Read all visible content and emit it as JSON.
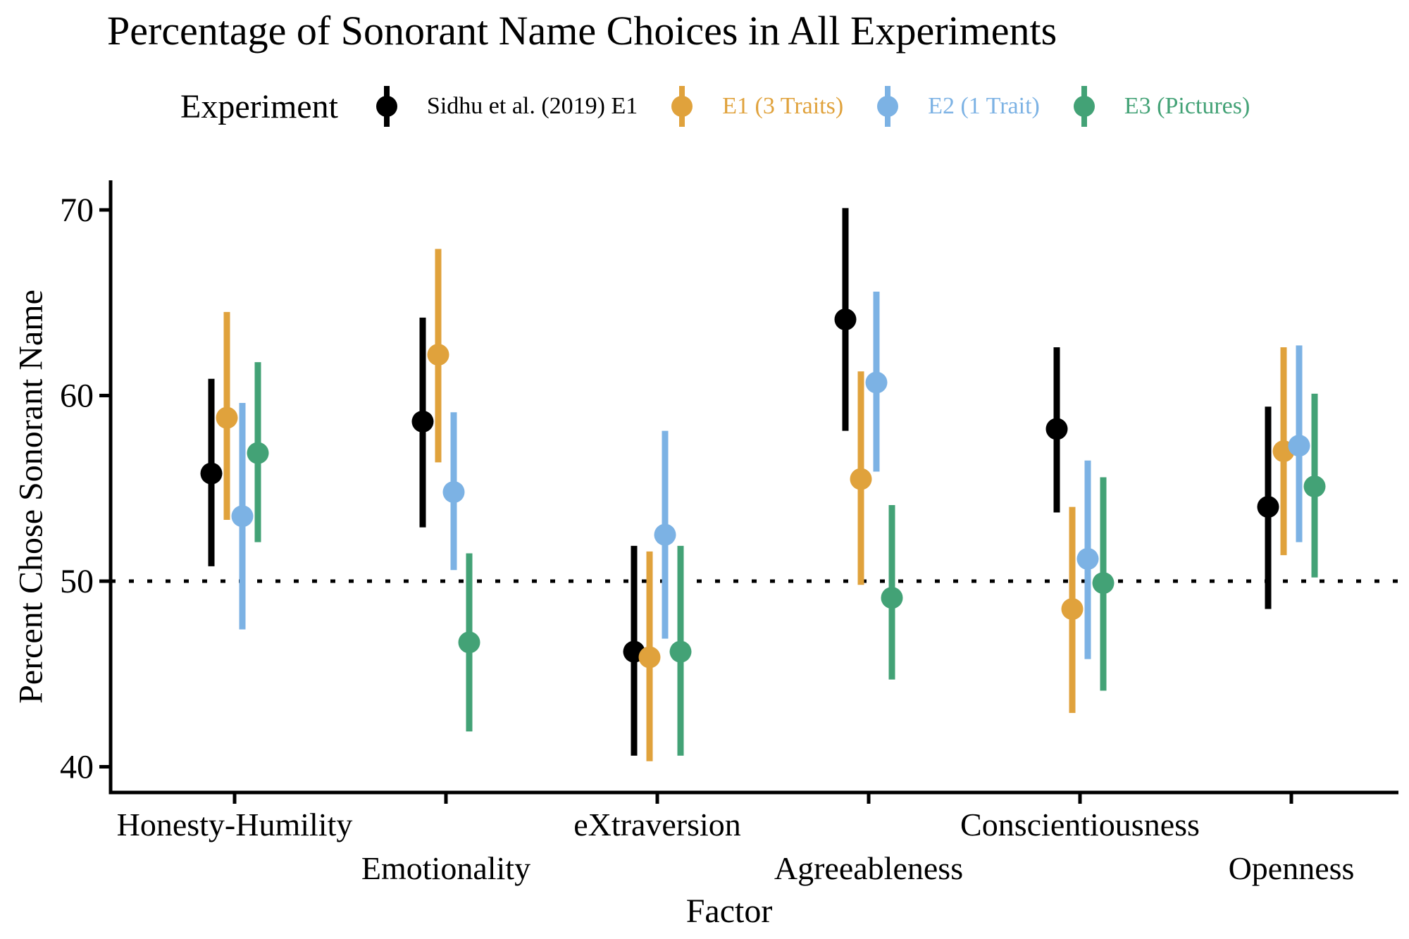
{
  "title": "Percentage of Sonorant Name Choices in All Experiments",
  "chart_data": {
    "type": "pointrange",
    "title": "Percentage of Sonorant Name Choices in All Experiments",
    "xlabel": "Factor",
    "ylabel": "Percent Chose Sonorant Name",
    "ylim": [
      38.5,
      72.5
    ],
    "y_ticks": [
      70,
      60,
      50,
      40
    ],
    "reference_line_y": 50,
    "reference_line_style": "dotted",
    "grid": "off",
    "legend_title": "Experiment",
    "legend_position": "top",
    "background": "#FFFFFF",
    "categories": [
      "Honesty-Humility",
      "Emotionality",
      "eXtraversion",
      "Agreeableness",
      "Conscientiousness",
      "Openness"
    ],
    "x_label_rows": [
      1,
      2,
      1,
      2,
      1,
      2
    ],
    "series": [
      {
        "name": "Sidhu et al. (2019) E1",
        "color": "#000000",
        "values": [
          55.8,
          58.6,
          46.2,
          64.1,
          58.2,
          54.0
        ],
        "ymin": [
          50.8,
          52.9,
          40.6,
          58.1,
          53.7,
          48.5
        ],
        "ymax": [
          60.9,
          64.2,
          51.9,
          70.1,
          62.6,
          59.4
        ]
      },
      {
        "name": "E1 (3 Traits)",
        "color": "#E0A23C",
        "values": [
          58.8,
          62.2,
          45.9,
          55.5,
          48.5,
          57.0
        ],
        "ymin": [
          53.3,
          56.4,
          40.3,
          49.8,
          42.9,
          51.4
        ],
        "ymax": [
          64.5,
          67.9,
          51.6,
          61.3,
          54.0,
          62.6
        ]
      },
      {
        "name": "E2 (1 Trait)",
        "color": "#7CB2E4",
        "values": [
          53.5,
          54.8,
          52.5,
          60.7,
          51.2,
          57.3
        ],
        "ymin": [
          47.4,
          50.6,
          46.9,
          55.9,
          45.8,
          52.1
        ],
        "ymax": [
          59.6,
          59.1,
          58.1,
          65.6,
          56.5,
          62.7
        ]
      },
      {
        "name": "E3 (Pictures)",
        "color": "#43A276",
        "values": [
          56.9,
          46.7,
          46.2,
          49.1,
          49.9,
          55.1
        ],
        "ymin": [
          52.1,
          41.9,
          40.6,
          44.7,
          44.1,
          50.2
        ],
        "ymax": [
          61.8,
          51.5,
          51.9,
          54.1,
          55.6,
          60.1
        ]
      }
    ]
  }
}
